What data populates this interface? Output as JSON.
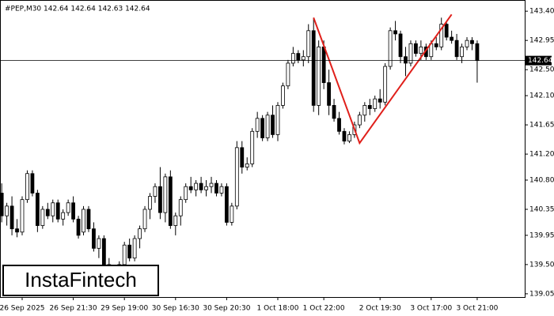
{
  "chart_data": {
    "type": "candlestick",
    "title": "#PEP,M30  142.64 142.64 142.63 142.64",
    "watermark": "InstaFintech",
    "categories": [
      null,
      null,
      null,
      null,
      "26 Sep 2025",
      null,
      null,
      null,
      null,
      null,
      null,
      null,
      null,
      null,
      "26 Sep 21:30",
      null,
      null,
      null,
      null,
      null,
      null,
      null,
      null,
      null,
      "29 Sep 19:00",
      null,
      null,
      null,
      null,
      null,
      null,
      null,
      null,
      null,
      "30 Sep 16:30",
      null,
      null,
      null,
      null,
      null,
      null,
      null,
      null,
      null,
      "30 Sep 20:30",
      null,
      null,
      null,
      null,
      null,
      null,
      null,
      null,
      null,
      "1 Oct 18:00",
      null,
      null,
      null,
      null,
      null,
      null,
      null,
      null,
      "1 Oct 22:00",
      null,
      null,
      null,
      null,
      null,
      null,
      null,
      null,
      null,
      null,
      "2 Oct 19:30",
      null,
      null,
      null,
      null,
      null,
      null,
      null,
      null,
      null,
      "3 Oct 17:00",
      null,
      null,
      null,
      null,
      null,
      null,
      null,
      null,
      "3 Oct 21:00"
    ],
    "open": [
      140.6,
      140.25,
      140.4,
      140.05,
      140.0,
      140.5,
      140.9,
      140.6,
      140.1,
      140.35,
      140.25,
      140.45,
      140.2,
      140.3,
      140.45,
      140.2,
      140.0,
      140.35,
      140.05,
      139.75,
      139.9,
      139.5,
      139.25,
      139.4,
      139.5,
      139.8,
      139.6,
      139.9,
      140.05,
      140.35,
      140.55,
      140.7,
      140.3,
      140.85,
      140.1,
      140.25,
      140.5,
      140.7,
      140.65,
      140.75,
      140.65,
      140.7,
      140.75,
      140.6,
      140.7,
      140.15,
      140.4,
      141.3,
      141.0,
      141.05,
      141.55,
      141.75,
      141.45,
      141.8,
      141.5,
      141.95,
      142.25,
      142.6,
      142.75,
      142.65,
      142.7,
      143.1,
      141.95,
      142.85,
      142.3,
      141.95,
      141.75,
      141.55,
      141.4,
      141.5,
      141.65,
      141.8,
      141.95,
      141.9,
      142.05,
      142.0,
      142.55,
      143.1,
      143.05,
      142.7,
      142.6,
      142.9,
      142.75,
      142.85,
      142.7,
      142.9,
      142.85,
      143.2,
      143.0,
      142.95,
      142.7,
      142.85,
      142.95,
      142.9
    ],
    "high": [
      140.75,
      140.45,
      140.55,
      140.2,
      140.55,
      140.95,
      140.95,
      140.65,
      140.4,
      140.45,
      140.5,
      140.5,
      140.35,
      140.5,
      140.55,
      140.25,
      140.4,
      140.4,
      140.15,
      139.95,
      139.95,
      139.6,
      139.45,
      139.55,
      139.85,
      139.9,
      139.95,
      140.1,
      140.4,
      140.6,
      140.75,
      141.0,
      140.9,
      140.95,
      140.3,
      140.55,
      140.75,
      140.85,
      140.8,
      140.85,
      140.8,
      140.85,
      140.8,
      140.75,
      140.75,
      140.45,
      141.4,
      141.4,
      141.15,
      141.6,
      141.85,
      141.8,
      141.85,
      141.95,
      142.0,
      142.3,
      142.65,
      142.85,
      142.8,
      142.8,
      143.2,
      143.3,
      142.95,
      142.95,
      142.5,
      142.05,
      141.85,
      141.6,
      141.55,
      141.7,
      141.85,
      142.0,
      142.05,
      142.1,
      142.2,
      142.6,
      143.15,
      143.25,
      143.1,
      142.85,
      142.95,
      142.95,
      142.95,
      142.9,
      142.95,
      143.0,
      143.3,
      143.25,
      143.1,
      143.05,
      142.9,
      143.0,
      143.0,
      142.95
    ],
    "low": [
      140.15,
      140.1,
      139.95,
      139.92,
      139.95,
      140.45,
      140.55,
      140.0,
      140.05,
      140.2,
      140.15,
      140.15,
      140.1,
      140.25,
      140.15,
      139.9,
      139.95,
      140.0,
      139.7,
      139.6,
      139.45,
      139.2,
      139.1,
      139.25,
      139.45,
      139.55,
      139.55,
      139.75,
      140.0,
      140.2,
      140.45,
      140.2,
      140.15,
      140.05,
      139.95,
      140.1,
      140.45,
      140.6,
      140.55,
      140.6,
      140.55,
      140.6,
      140.55,
      140.55,
      140.1,
      140.1,
      140.35,
      140.9,
      140.95,
      141.0,
      141.45,
      141.4,
      141.4,
      141.45,
      141.4,
      141.9,
      142.2,
      142.55,
      142.6,
      142.55,
      142.6,
      141.85,
      141.8,
      142.2,
      141.8,
      141.7,
      141.5,
      141.35,
      141.37,
      141.45,
      141.6,
      141.7,
      141.8,
      141.85,
      141.9,
      141.95,
      142.5,
      142.95,
      142.6,
      142.4,
      142.55,
      142.7,
      142.65,
      142.65,
      142.65,
      142.8,
      142.8,
      142.95,
      142.9,
      142.65,
      142.6,
      142.8,
      142.8,
      142.3
    ],
    "close": [
      140.25,
      140.4,
      140.05,
      140.0,
      140.5,
      140.9,
      140.6,
      140.1,
      140.35,
      140.25,
      140.45,
      140.2,
      140.3,
      140.45,
      140.2,
      139.95,
      140.35,
      140.05,
      139.75,
      139.9,
      139.5,
      139.25,
      139.4,
      139.5,
      139.8,
      139.6,
      139.9,
      140.05,
      140.35,
      140.55,
      140.7,
      140.3,
      140.85,
      140.1,
      140.25,
      140.5,
      140.7,
      140.65,
      140.75,
      140.65,
      140.7,
      140.75,
      140.6,
      140.7,
      140.15,
      140.4,
      141.3,
      141.0,
      141.05,
      141.55,
      141.75,
      141.45,
      141.8,
      141.5,
      141.95,
      142.25,
      142.6,
      142.75,
      142.65,
      142.7,
      143.1,
      141.95,
      142.85,
      142.3,
      141.95,
      141.75,
      141.55,
      141.4,
      141.5,
      141.65,
      141.8,
      141.95,
      141.9,
      142.05,
      142.0,
      142.55,
      143.1,
      143.05,
      142.7,
      142.6,
      142.9,
      142.75,
      142.85,
      142.7,
      142.9,
      142.85,
      143.2,
      143.0,
      142.95,
      142.7,
      142.85,
      142.95,
      142.9,
      142.64
    ],
    "up_color": "#ffffff",
    "down_color": "#000000",
    "wick_color": "#000000",
    "current_price": 142.64,
    "pattern": {
      "color": "#e0201b",
      "x": [
        61,
        70,
        88
      ],
      "values": [
        143.3,
        141.37,
        143.35
      ]
    },
    "ylim": [
      139.0,
      143.56
    ],
    "yticks": [
      139.05,
      {
        "value": 139.5,
        "label": "139.50"
      },
      139.95,
      140.35,
      {
        "value": 140.8,
        "label": "140.80"
      },
      {
        "value": 141.2,
        "label": "141.20"
      },
      141.65,
      {
        "value": 142.1,
        "label": "142.10"
      },
      {
        "value": 142.5,
        "label": "142.50"
      },
      142.95,
      {
        "value": 143.4,
        "label": "143.40"
      }
    ]
  }
}
